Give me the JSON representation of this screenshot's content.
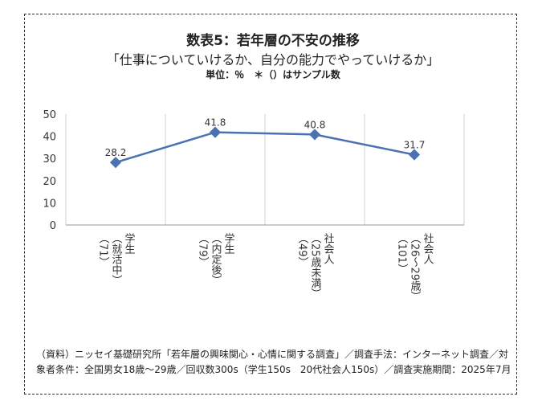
{
  "header": {
    "title": "数表5：若年層の不安の推移",
    "subtitle": "「仕事についていけるか、自分の能力でやっていけるか」",
    "unit_note": "単位：％　＊（）はサンプル数"
  },
  "footnote": "（資料）ニッセイ基礎研究所「若年層の興味関心・心情に関する調査」／調査手法：インターネット調査／対象者条件：全国男女18歳～29歳／回収数300s（学生150s　20代社会人150s）／調査実施期間：2025年7月",
  "colors": {
    "series": "#4a72b0",
    "grid": "#d0d0d0",
    "axis": "#999999",
    "text": "#333333"
  },
  "chart_data": {
    "type": "line",
    "title": "数表5：若年層の不安の推移",
    "ylim": [
      0,
      50
    ],
    "yticks": [
      0,
      10,
      20,
      30,
      40,
      50
    ],
    "categories": [
      [
        "学生",
        "（就活中）",
        "（71）"
      ],
      [
        "学生",
        "（内定後）",
        "（79）"
      ],
      [
        "社会人",
        "（25歳未満）",
        "（49）"
      ],
      [
        "社会人",
        "（26～29歳）",
        "（101）"
      ]
    ],
    "series": [
      {
        "name": "仕事についていけるか、自分の能力でやっていけるか",
        "values": [
          28.2,
          41.8,
          40.8,
          31.7
        ],
        "labels": [
          "28.2",
          "41.8",
          "40.8",
          "31.7"
        ]
      }
    ]
  }
}
